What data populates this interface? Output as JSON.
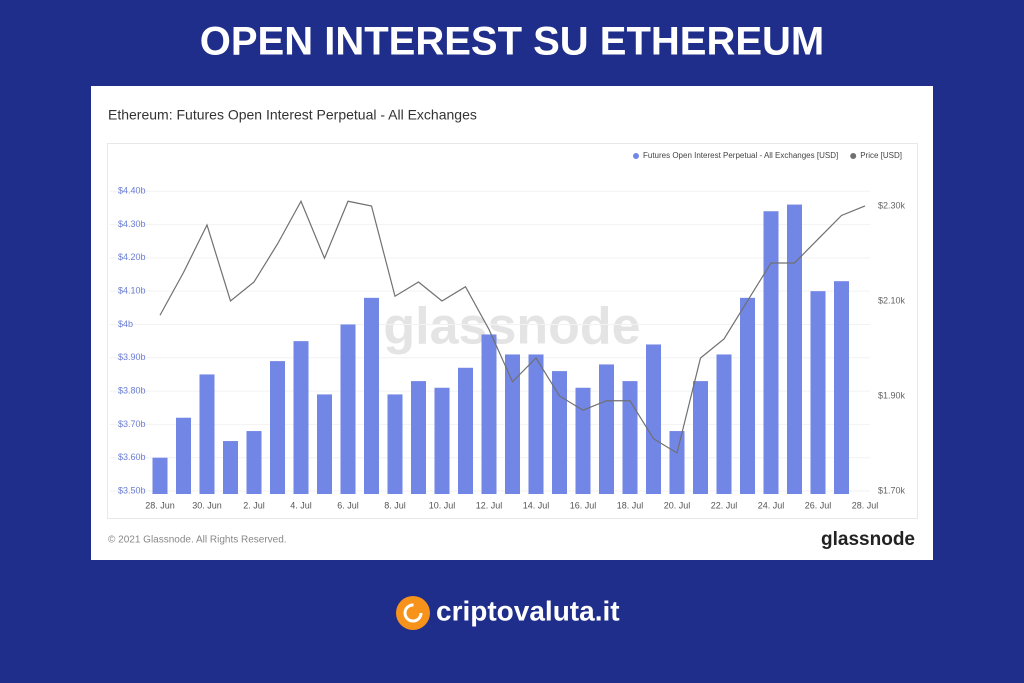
{
  "page": {
    "title": "OPEN INTEREST SU ETHEREUM",
    "watermark": "glassnode",
    "copyright": "© 2021 Glassnode. All Rights Reserved.",
    "logo": "glassnode",
    "brand": "criptovaluta.it"
  },
  "chart_data": {
    "type": "bar",
    "title": "Ethereum: Futures Open Interest Perpetual - All Exchanges",
    "categories": [
      "28. Jun",
      null,
      "30. Jun",
      null,
      "2. Jul",
      null,
      "4. Jul",
      null,
      "6. Jul",
      null,
      "8. Jul",
      null,
      "10. Jul",
      null,
      "12. Jul",
      null,
      "14. Jul",
      null,
      "16. Jul",
      null,
      "18. Jul",
      null,
      "20. Jul",
      null,
      "22. Jul",
      null,
      "24. Jul",
      null,
      "26. Jul",
      null,
      "28. Jul"
    ],
    "series": [
      {
        "name": "Futures Open Interest Perpetual - All Exchanges [USD]",
        "type": "bar",
        "color": "#7286e6",
        "values": [
          3.6,
          3.72,
          3.85,
          3.65,
          3.68,
          3.89,
          3.95,
          3.79,
          4.0,
          4.08,
          3.79,
          3.83,
          3.81,
          3.87,
          3.97,
          3.91,
          3.91,
          3.86,
          3.81,
          3.88,
          3.83,
          3.94,
          3.68,
          3.83,
          3.91,
          4.08,
          4.34,
          4.36,
          4.1,
          4.13,
          null
        ]
      },
      {
        "name": "Price [USD]",
        "type": "line",
        "axis": "y2",
        "color": "#707070",
        "values": [
          2.07,
          2.16,
          2.26,
          2.1,
          2.14,
          2.22,
          2.31,
          2.19,
          2.31,
          2.3,
          2.11,
          2.14,
          2.1,
          2.13,
          2.04,
          1.93,
          1.98,
          1.9,
          1.87,
          1.89,
          1.89,
          1.81,
          1.78,
          1.98,
          2.02,
          2.1,
          2.18,
          2.18,
          2.23,
          2.28,
          2.3
        ]
      }
    ],
    "ylim": [
      3.5,
      4.42
    ],
    "yticks": [
      {
        "value": 3.5,
        "label": "$3.50b"
      },
      {
        "value": 3.6,
        "label": "$3.60b"
      },
      {
        "value": 3.7,
        "label": "$3.70b"
      },
      {
        "value": 3.8,
        "label": "$3.80b"
      },
      {
        "value": 3.9,
        "label": "$3.90b"
      },
      {
        "value": 4.0,
        "label": "$4b"
      },
      {
        "value": 4.1,
        "label": "$4.10b"
      },
      {
        "value": 4.2,
        "label": "$4.20b"
      },
      {
        "value": 4.3,
        "label": "$4.30b"
      },
      {
        "value": 4.4,
        "label": "$4.40b"
      }
    ],
    "y2lim": [
      1.7,
      2.345
    ],
    "y2ticks": [
      {
        "value": 1.7,
        "label": "$1.70k"
      },
      {
        "value": 1.9,
        "label": "$1.90k"
      },
      {
        "value": 2.1,
        "label": "$2.10k"
      },
      {
        "value": 2.3,
        "label": "$2.30k"
      }
    ],
    "grid": true
  }
}
